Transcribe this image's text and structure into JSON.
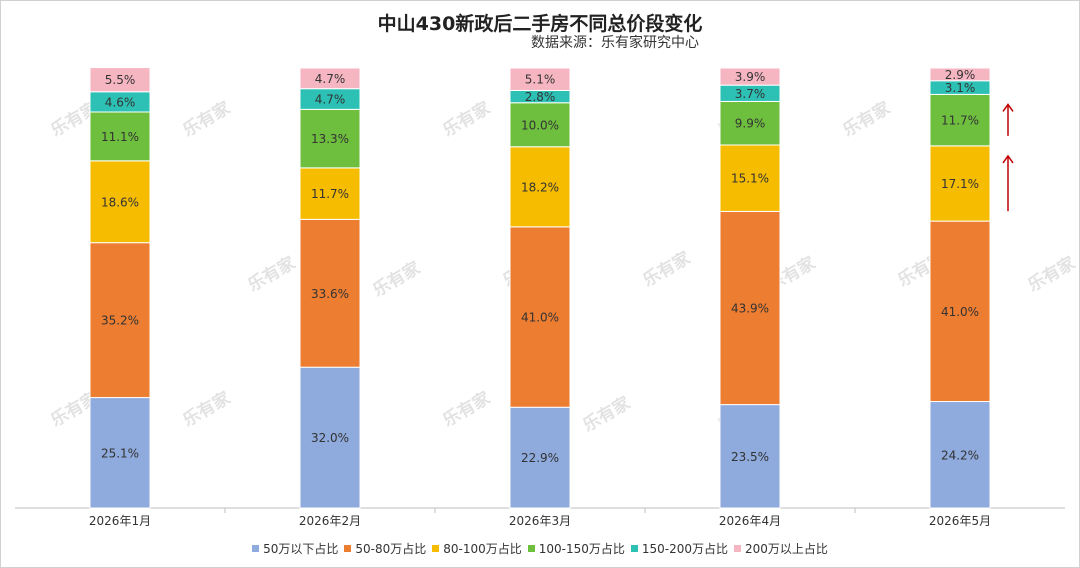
{
  "chart_data": {
    "type": "bar",
    "stacked": true,
    "title": "中山430新政后二手房不同总价段变化",
    "subtitle": "数据来源：乐有家研究中心",
    "categories": [
      "2026年1月",
      "2026年2月",
      "2026年3月",
      "2026年4月",
      "2026年5月"
    ],
    "series": [
      {
        "name": "50万以下占比",
        "color": "#8faadc",
        "values": [
          25.1,
          32.0,
          22.9,
          23.5,
          24.2
        ]
      },
      {
        "name": "50-80万占比",
        "color": "#ed7d31",
        "values": [
          35.2,
          33.6,
          41.0,
          43.9,
          41.0
        ]
      },
      {
        "name": "80-100万占比",
        "color": "#f5bc00",
        "values": [
          18.6,
          11.7,
          18.2,
          15.1,
          17.1
        ]
      },
      {
        "name": "100-150万占比",
        "color": "#6fbf3f",
        "values": [
          11.1,
          13.3,
          10.0,
          9.9,
          11.7
        ]
      },
      {
        "name": "150-200万占比",
        "color": "#2cc1b4",
        "values": [
          4.6,
          4.7,
          2.8,
          3.7,
          3.1
        ]
      },
      {
        "name": "200万以上占比",
        "color": "#f6b6c1",
        "values": [
          5.5,
          4.7,
          5.1,
          3.9,
          2.9
        ]
      }
    ],
    "value_suffix": "%",
    "ylim": [
      0,
      100
    ],
    "grid": false,
    "legend_position": "bottom",
    "annotations": [
      {
        "type": "up-arrow",
        "category": "2026年5月",
        "series": "100-150万占比",
        "color": "#c00000"
      },
      {
        "type": "up-arrow",
        "category": "2026年5月",
        "series": "80-100万占比",
        "color": "#c00000"
      }
    ]
  },
  "watermark": {
    "text": "乐有家"
  }
}
